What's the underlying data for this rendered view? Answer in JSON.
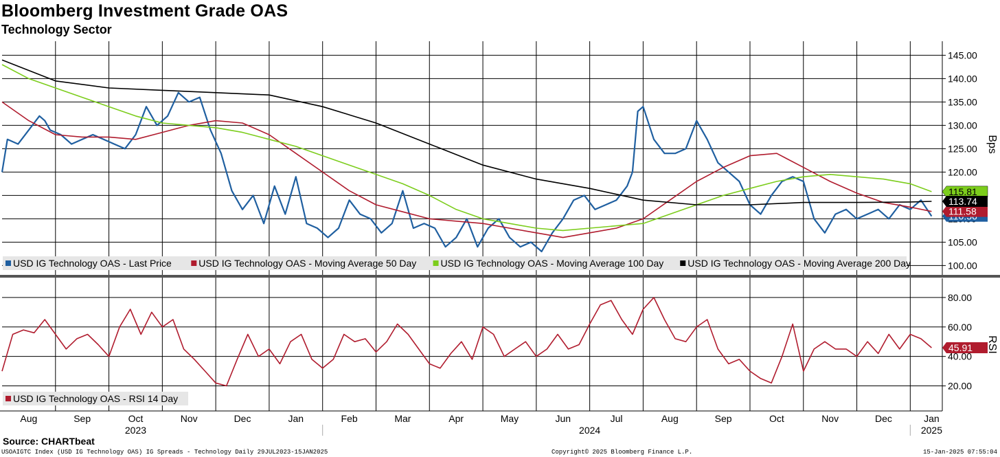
{
  "title": "Bloomberg Investment Grade OAS",
  "subtitle": "Technology Sector",
  "source": "Source: CHARTbeat",
  "footer": {
    "left": "USOAIGTC Index (USD IG Technology OAS) IG Spreads - Technology  Daily 29JUL2023-15JAN2025",
    "center": "Copyright© 2025 Bloomberg Finance L.P.",
    "right": "15-Jan-2025 07:55:04"
  },
  "colors": {
    "last_price": "#1f5fa0",
    "ma50": "#b01c2e",
    "ma100": "#7ccd1c",
    "ma200": "#000000",
    "rsi": "#b01c2e"
  },
  "chart_data": [
    {
      "type": "line",
      "panel": "price",
      "ylabel": "Bps",
      "ylim": [
        98,
        148
      ],
      "yticks": [
        100,
        105,
        110,
        115,
        120,
        125,
        130,
        135,
        140,
        145
      ],
      "ytick_labels": [
        "100.00",
        "105.00",
        "110.00",
        "115.00",
        "120.00",
        "125.00",
        "130.00",
        "135.00",
        "140.00",
        "145.00"
      ],
      "xlim": [
        0,
        17.6
      ],
      "grid": true,
      "legend_position": "bottom-left",
      "series": [
        {
          "name": "USD IG Technology OAS - Last Price",
          "color": "#1f5fa0",
          "last_label": "110.56",
          "x": [
            0,
            0.1,
            0.3,
            0.5,
            0.7,
            0.8,
            0.9,
            1.1,
            1.3,
            1.5,
            1.7,
            1.9,
            2.1,
            2.3,
            2.5,
            2.7,
            2.9,
            3.1,
            3.3,
            3.5,
            3.7,
            3.9,
            4.1,
            4.3,
            4.5,
            4.7,
            4.9,
            5.1,
            5.3,
            5.5,
            5.7,
            5.9,
            6.1,
            6.3,
            6.5,
            6.7,
            6.9,
            7.1,
            7.3,
            7.5,
            7.7,
            7.9,
            8.1,
            8.3,
            8.5,
            8.7,
            8.9,
            9.1,
            9.3,
            9.5,
            9.7,
            9.9,
            10.1,
            10.3,
            10.5,
            10.7,
            10.9,
            11.1,
            11.3,
            11.5,
            11.7,
            11.8,
            11.9,
            12.0,
            12.2,
            12.4,
            12.6,
            12.8,
            13.0,
            13.2,
            13.4,
            13.6,
            13.8,
            14.0,
            14.2,
            14.4,
            14.6,
            14.8,
            15.0,
            15.2,
            15.4,
            15.6,
            15.8,
            16.0,
            16.2,
            16.4,
            16.6,
            16.8,
            17.0,
            17.2,
            17.4
          ],
          "values": [
            120,
            127,
            126,
            129,
            132,
            131,
            129,
            128,
            126,
            127,
            128,
            127,
            126,
            125,
            128,
            134,
            130,
            132,
            137,
            135,
            136,
            129,
            124,
            116,
            112,
            115,
            109,
            117,
            111,
            119,
            109,
            108,
            106,
            108,
            114,
            111,
            110,
            107,
            109,
            116,
            108,
            109,
            108,
            104,
            106,
            110,
            104,
            108,
            110,
            106,
            104,
            105,
            103,
            107,
            110,
            114,
            115,
            112,
            113,
            114,
            117,
            120,
            133,
            134,
            127,
            124,
            124,
            125,
            131,
            127,
            122,
            120,
            118,
            113,
            111,
            115,
            118,
            119,
            118,
            110,
            107,
            111,
            112,
            110,
            111,
            112,
            110,
            113,
            112,
            114,
            110.56
          ]
        },
        {
          "name": "USD IG Technology OAS - Moving Average 50 Day",
          "color": "#b01c2e",
          "last_label": "111.58",
          "x": [
            0,
            0.5,
            1.0,
            1.5,
            2.0,
            2.5,
            3.0,
            3.5,
            4.0,
            4.5,
            5.0,
            5.5,
            6.0,
            6.5,
            7.0,
            7.5,
            8.0,
            8.5,
            9.0,
            9.5,
            10.0,
            10.5,
            11.0,
            11.5,
            12.0,
            12.5,
            13.0,
            13.5,
            14.0,
            14.5,
            15.0,
            15.5,
            16.0,
            16.5,
            17.0,
            17.4
          ],
          "values": [
            135,
            131,
            128,
            127.5,
            127.5,
            127,
            128.5,
            130,
            131,
            130.5,
            128,
            124,
            120,
            116,
            113,
            111.5,
            110,
            109.5,
            109,
            108,
            107,
            106,
            107,
            108,
            110,
            114,
            118,
            121,
            123.5,
            124,
            121,
            118,
            115.5,
            113.5,
            112.5,
            111.58
          ]
        },
        {
          "name": "USD IG Technology OAS - Moving Average 100 Day",
          "color": "#7ccd1c",
          "last_label": "115.81",
          "x": [
            0,
            0.5,
            1.0,
            1.5,
            2.0,
            2.5,
            3.0,
            3.5,
            4.0,
            4.5,
            5.0,
            5.5,
            6.0,
            6.5,
            7.0,
            7.5,
            8.0,
            8.5,
            9.0,
            9.5,
            10.0,
            10.5,
            11.0,
            11.5,
            12.0,
            12.5,
            13.0,
            13.5,
            14.0,
            14.5,
            15.0,
            15.5,
            16.0,
            16.5,
            17.0,
            17.4
          ],
          "values": [
            143,
            140,
            138,
            136,
            134,
            132,
            130.5,
            130,
            129.5,
            128.5,
            127,
            125.5,
            123.5,
            121.5,
            119.5,
            117.5,
            115,
            112,
            110,
            109,
            108,
            107.5,
            108,
            108.5,
            109,
            111,
            113,
            115,
            116.5,
            118,
            119,
            119.5,
            119,
            118.5,
            117.5,
            115.81
          ]
        },
        {
          "name": "USD IG Technology OAS - Moving Average 200 Day",
          "color": "#000000",
          "last_label": "113.74",
          "x": [
            0,
            1.0,
            2.0,
            3.0,
            4.0,
            5.0,
            6.0,
            7.0,
            8.0,
            9.0,
            10.0,
            11.0,
            12.0,
            13.0,
            14.0,
            15.0,
            16.0,
            17.0,
            17.4
          ],
          "values": [
            144,
            139.5,
            138,
            137.5,
            137,
            136.5,
            134,
            130.5,
            126,
            121.5,
            118.5,
            116.5,
            114,
            113,
            113,
            113.5,
            113.5,
            113.6,
            113.74
          ]
        }
      ],
      "legend": [
        "USD IG Technology OAS - Last Price",
        "USD IG Technology OAS - Moving Average 50 Day",
        "USD IG Technology OAS - Moving Average 100 Day",
        "USD IG Technology OAS - Moving Average 200 Day"
      ]
    },
    {
      "type": "line",
      "panel": "rsi",
      "ylabel": "RSI",
      "ylim": [
        3,
        93
      ],
      "yticks": [
        20,
        40,
        60,
        80
      ],
      "ytick_labels": [
        "20.00",
        "40.00",
        "60.00",
        "80.00"
      ],
      "xlim": [
        0,
        17.6
      ],
      "grid": true,
      "legend_position": "bottom-left",
      "series": [
        {
          "name": "USD IG Technology OAS - RSI 14 Day",
          "color": "#b01c2e",
          "last_label": "45.91",
          "x": [
            0,
            0.2,
            0.4,
            0.6,
            0.8,
            1.0,
            1.2,
            1.4,
            1.6,
            1.8,
            2.0,
            2.2,
            2.4,
            2.6,
            2.8,
            3.0,
            3.2,
            3.4,
            3.6,
            3.8,
            4.0,
            4.2,
            4.4,
            4.6,
            4.8,
            5.0,
            5.2,
            5.4,
            5.6,
            5.8,
            6.0,
            6.2,
            6.4,
            6.6,
            6.8,
            7.0,
            7.2,
            7.4,
            7.6,
            7.8,
            8.0,
            8.2,
            8.4,
            8.6,
            8.8,
            9.0,
            9.2,
            9.4,
            9.6,
            9.8,
            10.0,
            10.2,
            10.4,
            10.6,
            10.8,
            11.0,
            11.2,
            11.4,
            11.6,
            11.8,
            12.0,
            12.2,
            12.4,
            12.6,
            12.8,
            13.0,
            13.2,
            13.4,
            13.6,
            13.8,
            14.0,
            14.2,
            14.4,
            14.6,
            14.8,
            15.0,
            15.2,
            15.4,
            15.6,
            15.8,
            16.0,
            16.2,
            16.4,
            16.6,
            16.8,
            17.0,
            17.2,
            17.4
          ],
          "values": [
            30,
            55,
            58,
            56,
            65,
            55,
            45,
            52,
            55,
            48,
            40,
            60,
            72,
            55,
            70,
            60,
            65,
            45,
            38,
            30,
            22,
            20,
            38,
            55,
            40,
            45,
            35,
            50,
            55,
            38,
            32,
            38,
            55,
            50,
            52,
            43,
            50,
            62,
            55,
            45,
            35,
            32,
            42,
            50,
            38,
            60,
            55,
            40,
            45,
            50,
            40,
            45,
            55,
            45,
            48,
            62,
            75,
            78,
            65,
            55,
            72,
            80,
            65,
            52,
            50,
            60,
            65,
            45,
            35,
            38,
            30,
            25,
            22,
            40,
            62,
            30,
            45,
            50,
            45,
            45,
            40,
            50,
            42,
            55,
            45,
            55,
            52,
            45.91
          ]
        }
      ],
      "legend": [
        "USD IG Technology OAS - RSI 14 Day"
      ]
    }
  ],
  "x_axis": {
    "months": [
      {
        "label": "Aug",
        "x": 0.5
      },
      {
        "label": "Sep",
        "x": 1.5
      },
      {
        "label": "Oct",
        "x": 2.5
      },
      {
        "label": "Nov",
        "x": 3.5
      },
      {
        "label": "Dec",
        "x": 4.5
      },
      {
        "label": "Jan",
        "x": 5.5
      },
      {
        "label": "Feb",
        "x": 6.5
      },
      {
        "label": "Mar",
        "x": 7.5
      },
      {
        "label": "Apr",
        "x": 8.5
      },
      {
        "label": "May",
        "x": 9.5
      },
      {
        "label": "Jun",
        "x": 10.5
      },
      {
        "label": "Jul",
        "x": 11.5
      },
      {
        "label": "Aug",
        "x": 12.5
      },
      {
        "label": "Sep",
        "x": 13.5
      },
      {
        "label": "Oct",
        "x": 14.5
      },
      {
        "label": "Nov",
        "x": 15.5
      },
      {
        "label": "Dec",
        "x": 16.5
      },
      {
        "label": "Jan",
        "x": 17.4
      }
    ],
    "years": [
      {
        "label": "2023",
        "x": 2.5
      },
      {
        "label": "2024",
        "x": 11.0
      },
      {
        "label": "2025",
        "x": 17.4
      }
    ]
  }
}
